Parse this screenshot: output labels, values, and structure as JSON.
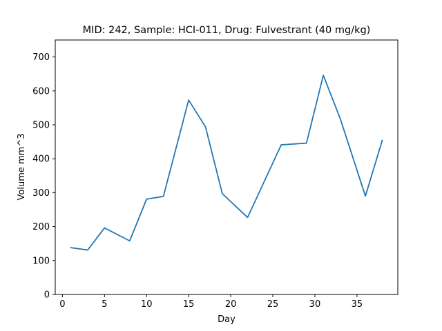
{
  "chart_data": {
    "type": "line",
    "title": "MID: 242, Sample: HCI-011, Drug: Fulvestrant (40 mg/kg)",
    "xlabel": "Day",
    "ylabel": "Volume mm^3",
    "xlim": [
      -0.85,
      39.85
    ],
    "ylim": [
      0,
      750
    ],
    "xticks": [
      0,
      5,
      10,
      15,
      20,
      25,
      30,
      35
    ],
    "yticks": [
      0,
      100,
      200,
      300,
      400,
      500,
      600,
      700
    ],
    "grid": false,
    "series": [
      {
        "color": "#1f77b4",
        "x": [
          1,
          3,
          5,
          8,
          10,
          12,
          15,
          17,
          19,
          22,
          26,
          29,
          31,
          33,
          36,
          38
        ],
        "y": [
          138,
          131,
          196,
          158,
          281,
          289,
          573,
          494,
          297,
          227,
          441,
          446,
          646,
          519,
          290,
          454
        ]
      }
    ]
  }
}
